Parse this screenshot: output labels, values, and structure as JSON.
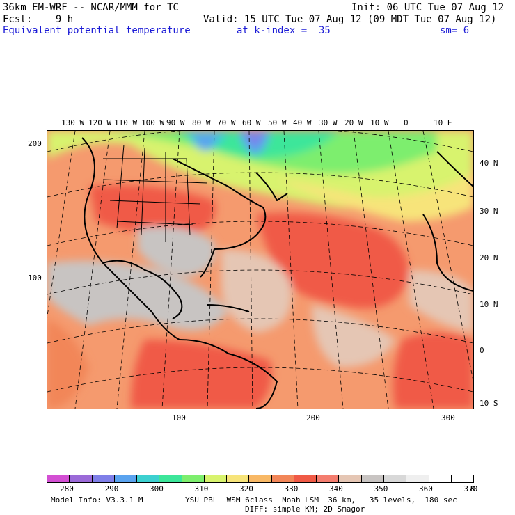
{
  "header": {
    "title_left": "36km EM-WRF -- NCAR/MMM for TC",
    "init": "Init: 06 UTC Tue 07 Aug 12",
    "fcst": "Fcst:    9 h",
    "valid": "Valid: 15 UTC Tue 07 Aug 12 (09 MDT Tue 07 Aug 12)",
    "field": "Equivalent potential temperature",
    "kindex": "at k-index =  35",
    "sm": "sm= 6"
  },
  "map": {
    "lon_labels": [
      "130 W",
      "120 W",
      "110 W",
      "100 W",
      "90 W",
      "80 W",
      "70 W",
      "60 W",
      "50 W",
      "40 W",
      "30 W",
      "20 W",
      "10 W",
      "0",
      "10 E"
    ],
    "lat_labels": [
      "40 N",
      "30 N",
      "20 N",
      "10 N",
      "0",
      "10 S"
    ],
    "y_grid_labels": [
      "200",
      "100"
    ],
    "x_grid_labels": [
      "100",
      "200",
      "300"
    ]
  },
  "colorbar": {
    "colors": [
      "#d34fd3",
      "#9b6ad8",
      "#7f7fe8",
      "#5aa3ef",
      "#3cd0d0",
      "#3ce69a",
      "#7dee6e",
      "#d8f36e",
      "#f7e47a",
      "#f8b865",
      "#f28658",
      "#f05a46",
      "#f47d6f",
      "#e5c6b4",
      "#c8c4c2",
      "#d8d8d8",
      "#efefef",
      "#ffffff",
      "#ffffff"
    ],
    "labels": [
      "280",
      "290",
      "300",
      "310",
      "320",
      "330",
      "340",
      "350",
      "360",
      "370",
      "K"
    ],
    "label_positions_note": ""
  },
  "footer": {
    "model": "Model Info: V3.3.1 M",
    "physics1": "YSU PBL  WSM 6class  Noah LSM  36 km,   35 levels,  180 sec",
    "physics2": "DIFF: simple KM; 2D Smagor"
  }
}
